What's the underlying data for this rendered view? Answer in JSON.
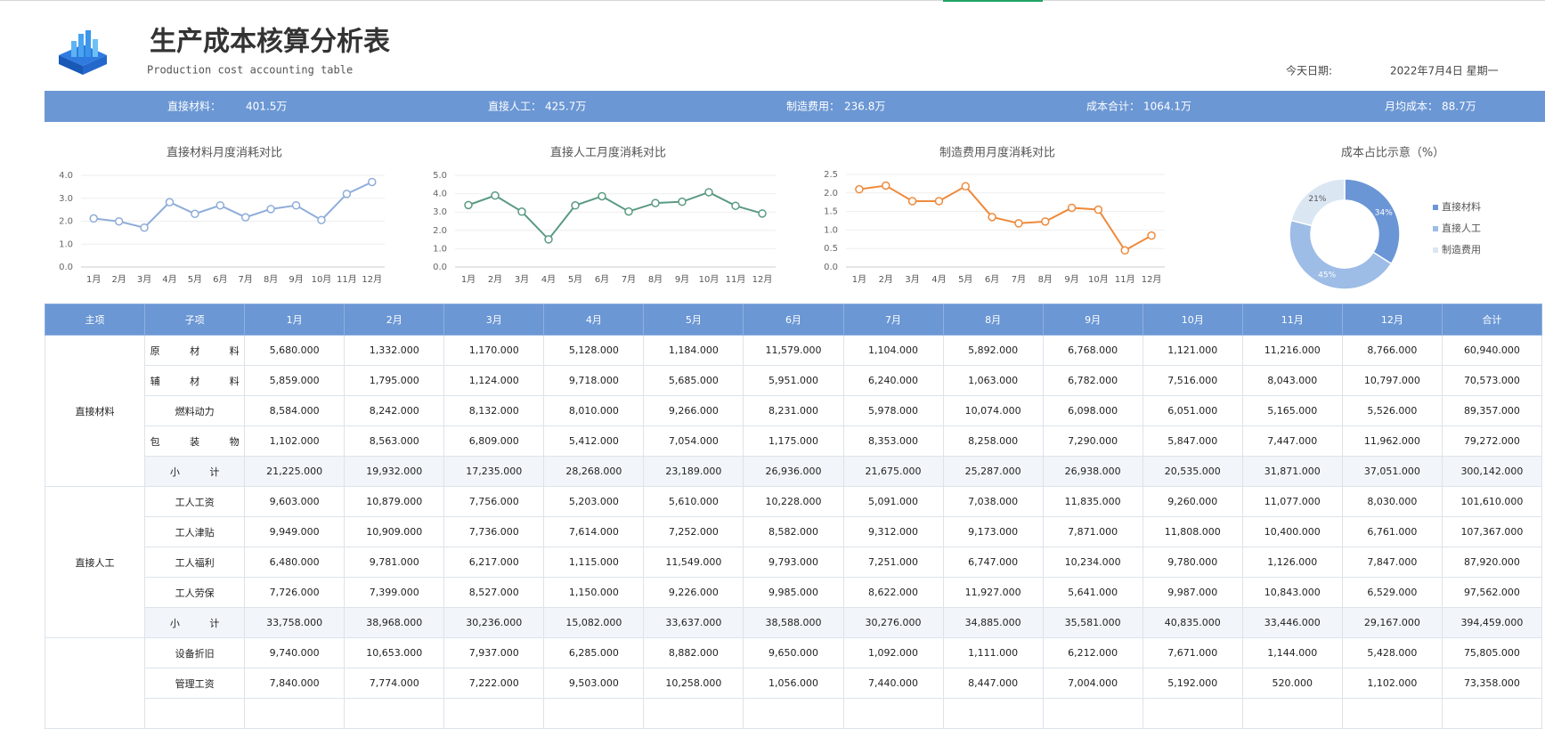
{
  "header": {
    "title": "生产成本核算分析表",
    "subtitle": "Production cost accounting table",
    "date_label": "今天日期:",
    "date": "2022年7月4日 星期一"
  },
  "summary": [
    {
      "label": "直接材料：",
      "value": "401.5万"
    },
    {
      "label": "直接人工：",
      "value": "425.7万"
    },
    {
      "label": "制造费用：",
      "value": "236.8万"
    },
    {
      "label": "成本合计：",
      "value": "1064.1万"
    },
    {
      "label": "月均成本：",
      "value": "88.7万"
    }
  ],
  "chart_data": [
    {
      "type": "line",
      "title": "直接材料月度消耗对比",
      "color": "#8fadd9",
      "categories": [
        "1月",
        "2月",
        "3月",
        "4月",
        "5月",
        "6月",
        "7月",
        "8月",
        "9月",
        "10月",
        "11月",
        "12月"
      ],
      "values": [
        2.12,
        1.99,
        1.72,
        2.83,
        2.32,
        2.69,
        2.17,
        2.53,
        2.69,
        2.05,
        3.19,
        3.71
      ],
      "ylim": [
        0,
        4
      ],
      "yticks": [
        {
          "value": 0,
          "label": "0.0"
        },
        {
          "value": 1,
          "label": "1.0"
        },
        {
          "value": 2,
          "label": "2.0"
        },
        {
          "value": 3,
          "label": "3.0"
        },
        {
          "value": 4,
          "label": "4.0"
        }
      ],
      "grid": true
    },
    {
      "type": "line",
      "title": "直接人工月度消耗对比",
      "color": "#5b9a82",
      "categories": [
        "1月",
        "2月",
        "3月",
        "4月",
        "5月",
        "6月",
        "7月",
        "8月",
        "9月",
        "10月",
        "11月",
        "12月"
      ],
      "values": [
        3.38,
        3.9,
        3.02,
        1.51,
        3.36,
        3.86,
        3.03,
        3.49,
        3.56,
        4.08,
        3.34,
        2.92
      ],
      "ylim": [
        0,
        5
      ],
      "yticks": [
        {
          "value": 0,
          "label": "0.0"
        },
        {
          "value": 1,
          "label": "1.0"
        },
        {
          "value": 2,
          "label": "2.0"
        },
        {
          "value": 3,
          "label": "3.0"
        },
        {
          "value": 4,
          "label": "4.0"
        },
        {
          "value": 5,
          "label": "5.0"
        }
      ],
      "grid": true
    },
    {
      "type": "line",
      "title": "制造费用月度消耗对比",
      "color": "#ee8a3c",
      "categories": [
        "1月",
        "2月",
        "3月",
        "4月",
        "5月",
        "6月",
        "7月",
        "8月",
        "9月",
        "10月",
        "11月",
        "12月"
      ],
      "values": [
        2.1,
        2.2,
        1.78,
        1.78,
        2.18,
        1.35,
        1.18,
        1.23,
        1.6,
        1.55,
        0.45,
        0.85
      ],
      "ylim": [
        0,
        2.5
      ],
      "yticks": [
        {
          "value": 0,
          "label": "0.0"
        },
        0.5,
        {
          "value": 1,
          "label": "1.0"
        },
        1.5,
        {
          "value": 2,
          "label": "2.0"
        },
        2.5
      ],
      "grid": true
    },
    {
      "type": "donut",
      "title": "成本占比示意（%）",
      "categories": [
        "直接材料",
        "直接人工",
        "制造费用"
      ],
      "values": [
        34,
        45,
        21
      ],
      "value_labels": [
        "34%",
        "45%",
        "21%"
      ],
      "colors": [
        "#6b96d6",
        "#9dbce6",
        "#dbe6f3"
      ],
      "legend": "right"
    }
  ],
  "table": {
    "columns": [
      "主项",
      "子项",
      "1月",
      "2月",
      "3月",
      "4月",
      "5月",
      "6月",
      "7月",
      "8月",
      "9月",
      "10月",
      "11月",
      "12月",
      "合计"
    ],
    "groups": [
      {
        "name": "直接材料",
        "rows": [
          [
            "原 材 料",
            "5,680.000",
            "1,332.000",
            "1,170.000",
            "5,128.000",
            "1,184.000",
            "11,579.000",
            "1,104.000",
            "5,892.000",
            "6,768.000",
            "1,121.000",
            "11,216.000",
            "8,766.000",
            "60,940.000"
          ],
          [
            "辅 材 料",
            "5,859.000",
            "1,795.000",
            "1,124.000",
            "9,718.000",
            "5,685.000",
            "5,951.000",
            "6,240.000",
            "1,063.000",
            "6,782.000",
            "7,516.000",
            "8,043.000",
            "10,797.000",
            "70,573.000"
          ],
          [
            "燃料动力",
            "8,584.000",
            "8,242.000",
            "8,132.000",
            "8,010.000",
            "9,266.000",
            "8,231.000",
            "5,978.000",
            "10,074.000",
            "6,098.000",
            "6,051.000",
            "5,165.000",
            "5,526.000",
            "89,357.000"
          ],
          [
            "包 装 物",
            "1,102.000",
            "8,563.000",
            "6,809.000",
            "5,412.000",
            "7,054.000",
            "1,175.000",
            "8,353.000",
            "8,258.000",
            "7,290.000",
            "5,847.000",
            "7,447.000",
            "11,962.000",
            "79,272.000"
          ],
          [
            "小 计",
            "21,225.000",
            "19,932.000",
            "17,235.000",
            "28,268.000",
            "23,189.000",
            "26,936.000",
            "21,675.000",
            "25,287.000",
            "26,938.000",
            "20,535.000",
            "31,871.000",
            "37,051.000",
            "300,142.000"
          ]
        ]
      },
      {
        "name": "直接人工",
        "rows": [
          [
            "工人工资",
            "9,603.000",
            "10,879.000",
            "7,756.000",
            "5,203.000",
            "5,610.000",
            "10,228.000",
            "5,091.000",
            "7,038.000",
            "11,835.000",
            "9,260.000",
            "11,077.000",
            "8,030.000",
            "101,610.000"
          ],
          [
            "工人津贴",
            "9,949.000",
            "10,909.000",
            "7,736.000",
            "7,614.000",
            "7,252.000",
            "8,582.000",
            "9,312.000",
            "9,173.000",
            "7,871.000",
            "11,808.000",
            "10,400.000",
            "6,761.000",
            "107,367.000"
          ],
          [
            "工人福利",
            "6,480.000",
            "9,781.000",
            "6,217.000",
            "1,115.000",
            "11,549.000",
            "9,793.000",
            "7,251.000",
            "6,747.000",
            "10,234.000",
            "9,780.000",
            "1,126.000",
            "7,847.000",
            "87,920.000"
          ],
          [
            "工人劳保",
            "7,726.000",
            "7,399.000",
            "8,527.000",
            "1,150.000",
            "9,226.000",
            "9,985.000",
            "8,622.000",
            "11,927.000",
            "5,641.000",
            "9,987.000",
            "10,843.000",
            "6,529.000",
            "97,562.000"
          ],
          [
            "小 计",
            "33,758.000",
            "38,968.000",
            "30,236.000",
            "15,082.000",
            "33,637.000",
            "38,588.000",
            "30,276.000",
            "34,885.000",
            "35,581.000",
            "40,835.000",
            "33,446.000",
            "29,167.000",
            "394,459.000"
          ]
        ]
      },
      {
        "rows": [
          [
            "设备折旧",
            "9,740.000",
            "10,653.000",
            "7,937.000",
            "6,285.000",
            "8,882.000",
            "9,650.000",
            "1,092.000",
            "1,111.000",
            "6,212.000",
            "7,671.000",
            "1,144.000",
            "5,428.000",
            "75,805.000"
          ],
          [
            "管理工资",
            "7,840.000",
            "7,774.000",
            "7,222.000",
            "9,503.000",
            "10,258.000",
            "1,056.000",
            "7,440.000",
            "8,447.000",
            "7,004.000",
            "5,192.000",
            "520.000",
            "1,102.000",
            "73,358.000"
          ]
        ]
      }
    ]
  }
}
